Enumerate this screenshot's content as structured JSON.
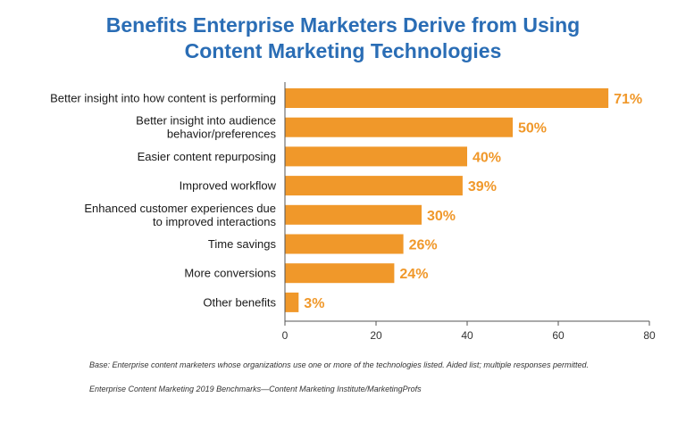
{
  "chart_data": {
    "type": "bar",
    "orientation": "horizontal",
    "title_lines": [
      "Benefits Enterprise Marketers Derive from Using",
      "Content Marketing Technologies"
    ],
    "categories": [
      [
        "Better insight into how content is performing"
      ],
      [
        "Better insight into audience",
        "behavior/preferences"
      ],
      [
        "Easier content repurposing"
      ],
      [
        "Improved workflow"
      ],
      [
        "Enhanced customer experiences due",
        "to improved interactions"
      ],
      [
        "Time savings"
      ],
      [
        "More conversions"
      ],
      [
        "Other benefits"
      ]
    ],
    "values": [
      71,
      50,
      40,
      39,
      30,
      26,
      24,
      3
    ],
    "value_labels": [
      "71%",
      "50%",
      "40%",
      "39%",
      "30%",
      "26%",
      "24%",
      "3%"
    ],
    "xlim": [
      0,
      80
    ],
    "xticks": [
      "0",
      "20",
      "40",
      "60",
      "80"
    ],
    "xtick_values": [
      0,
      20,
      40,
      60,
      80
    ],
    "grid": false,
    "bar_color": "#f0982a",
    "label_color": "#f0982a",
    "title_color": "#2a6db5"
  },
  "footnotes": {
    "base": "Base: Enterprise content marketers whose organizations use one or more of the technologies listed. Aided list; multiple responses permitted.",
    "source": "Enterprise Content Marketing 2019 Benchmarks—Content Marketing Institute/MarketingProfs"
  }
}
